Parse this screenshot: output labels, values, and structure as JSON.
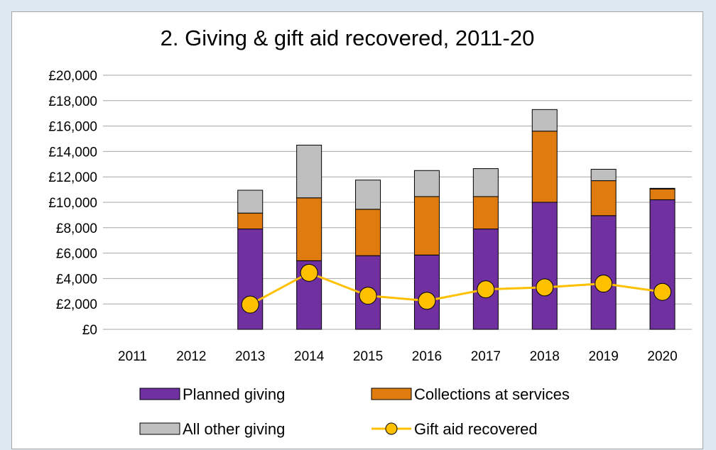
{
  "chart_data": {
    "type": "bar",
    "stacked": true,
    "title": "2. Giving & gift aid recovered, 2011-20",
    "xlabel": "",
    "ylabel": "",
    "categories": [
      "2011",
      "2012",
      "2013",
      "2014",
      "2015",
      "2016",
      "2017",
      "2018",
      "2019",
      "2020"
    ],
    "ylim": [
      0,
      20000
    ],
    "yticks": [
      0,
      2000,
      4000,
      6000,
      8000,
      10000,
      12000,
      14000,
      16000,
      18000,
      20000
    ],
    "ytick_labels": [
      "£0",
      "£2,000",
      "£4,000",
      "£6,000",
      "£8,000",
      "£10,000",
      "£12,000",
      "£14,000",
      "£16,000",
      "£18,000",
      "£20,000"
    ],
    "grid": true,
    "legend_placement": "bottom",
    "series": [
      {
        "name": "Planned giving",
        "kind": "bar",
        "color": "#7030a0",
        "values": [
          null,
          null,
          7900,
          5400,
          5800,
          5850,
          7900,
          10000,
          8950,
          10200
        ]
      },
      {
        "name": "Collections at services",
        "kind": "bar",
        "color": "#e07b10",
        "values": [
          null,
          null,
          1250,
          4950,
          3650,
          4600,
          2550,
          5600,
          2750,
          850
        ]
      },
      {
        "name": "All other giving",
        "kind": "bar",
        "color": "#bfbfbf",
        "values": [
          null,
          null,
          1800,
          4150,
          2300,
          2050,
          2200,
          1700,
          900,
          50
        ]
      },
      {
        "name": "Gift aid recovered",
        "kind": "line",
        "color": "#ffc000",
        "values": [
          null,
          null,
          1950,
          4450,
          2650,
          2250,
          3150,
          3300,
          3600,
          2950
        ]
      }
    ]
  }
}
